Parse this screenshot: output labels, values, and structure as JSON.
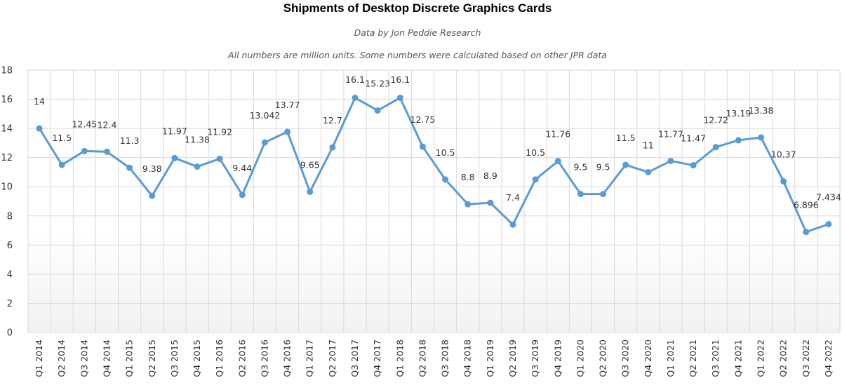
{
  "chart_data": {
    "type": "line",
    "title": "Shipments of Desktop Discrete Graphics Cards",
    "subtitle": "Data by Jon Peddie Research",
    "note": "All numbers are million units. Some numbers were calculated based on other JPR data",
    "xlabel": "",
    "ylabel": "",
    "ylim": [
      0,
      18
    ],
    "yticks": [
      0,
      2,
      4,
      6,
      8,
      10,
      12,
      14,
      16,
      18
    ],
    "grid": true,
    "legend": "none",
    "color": "#5b9bd5",
    "categories": [
      "Q1 2014",
      "Q2 2014",
      "Q3 2014",
      "Q4 2014",
      "Q1 2015",
      "Q2 2015",
      "Q3 2015",
      "Q4 2015",
      "Q1 2016",
      "Q2 2016",
      "Q3 2016",
      "Q4 2016",
      "Q1 2017",
      "Q2 2017",
      "Q3 2017",
      "Q4 2017",
      "Q1 2018",
      "Q2 2018",
      "Q3 2018",
      "Q4 2018",
      "Q1 2019",
      "Q2 2019",
      "Q3 2019",
      "Q4 2019",
      "Q1 2020",
      "Q2 2020",
      "Q3 2020",
      "Q4 2020",
      "Q1 2021",
      "Q2 2021",
      "Q3 2021",
      "Q4 2021",
      "Q1 2022",
      "Q2 2022",
      "Q3 2022",
      "Q4 2022"
    ],
    "values": [
      14,
      11.5,
      12.45,
      12.4,
      11.3,
      9.38,
      11.97,
      11.38,
      11.92,
      9.44,
      13.042,
      13.77,
      9.65,
      12.7,
      16.1,
      15.23,
      16.1,
      12.75,
      10.5,
      8.8,
      8.9,
      7.4,
      10.5,
      11.76,
      9.5,
      9.5,
      11.5,
      11,
      11.77,
      11.47,
      12.72,
      13.19,
      13.38,
      10.37,
      6.896,
      7.434
    ]
  }
}
